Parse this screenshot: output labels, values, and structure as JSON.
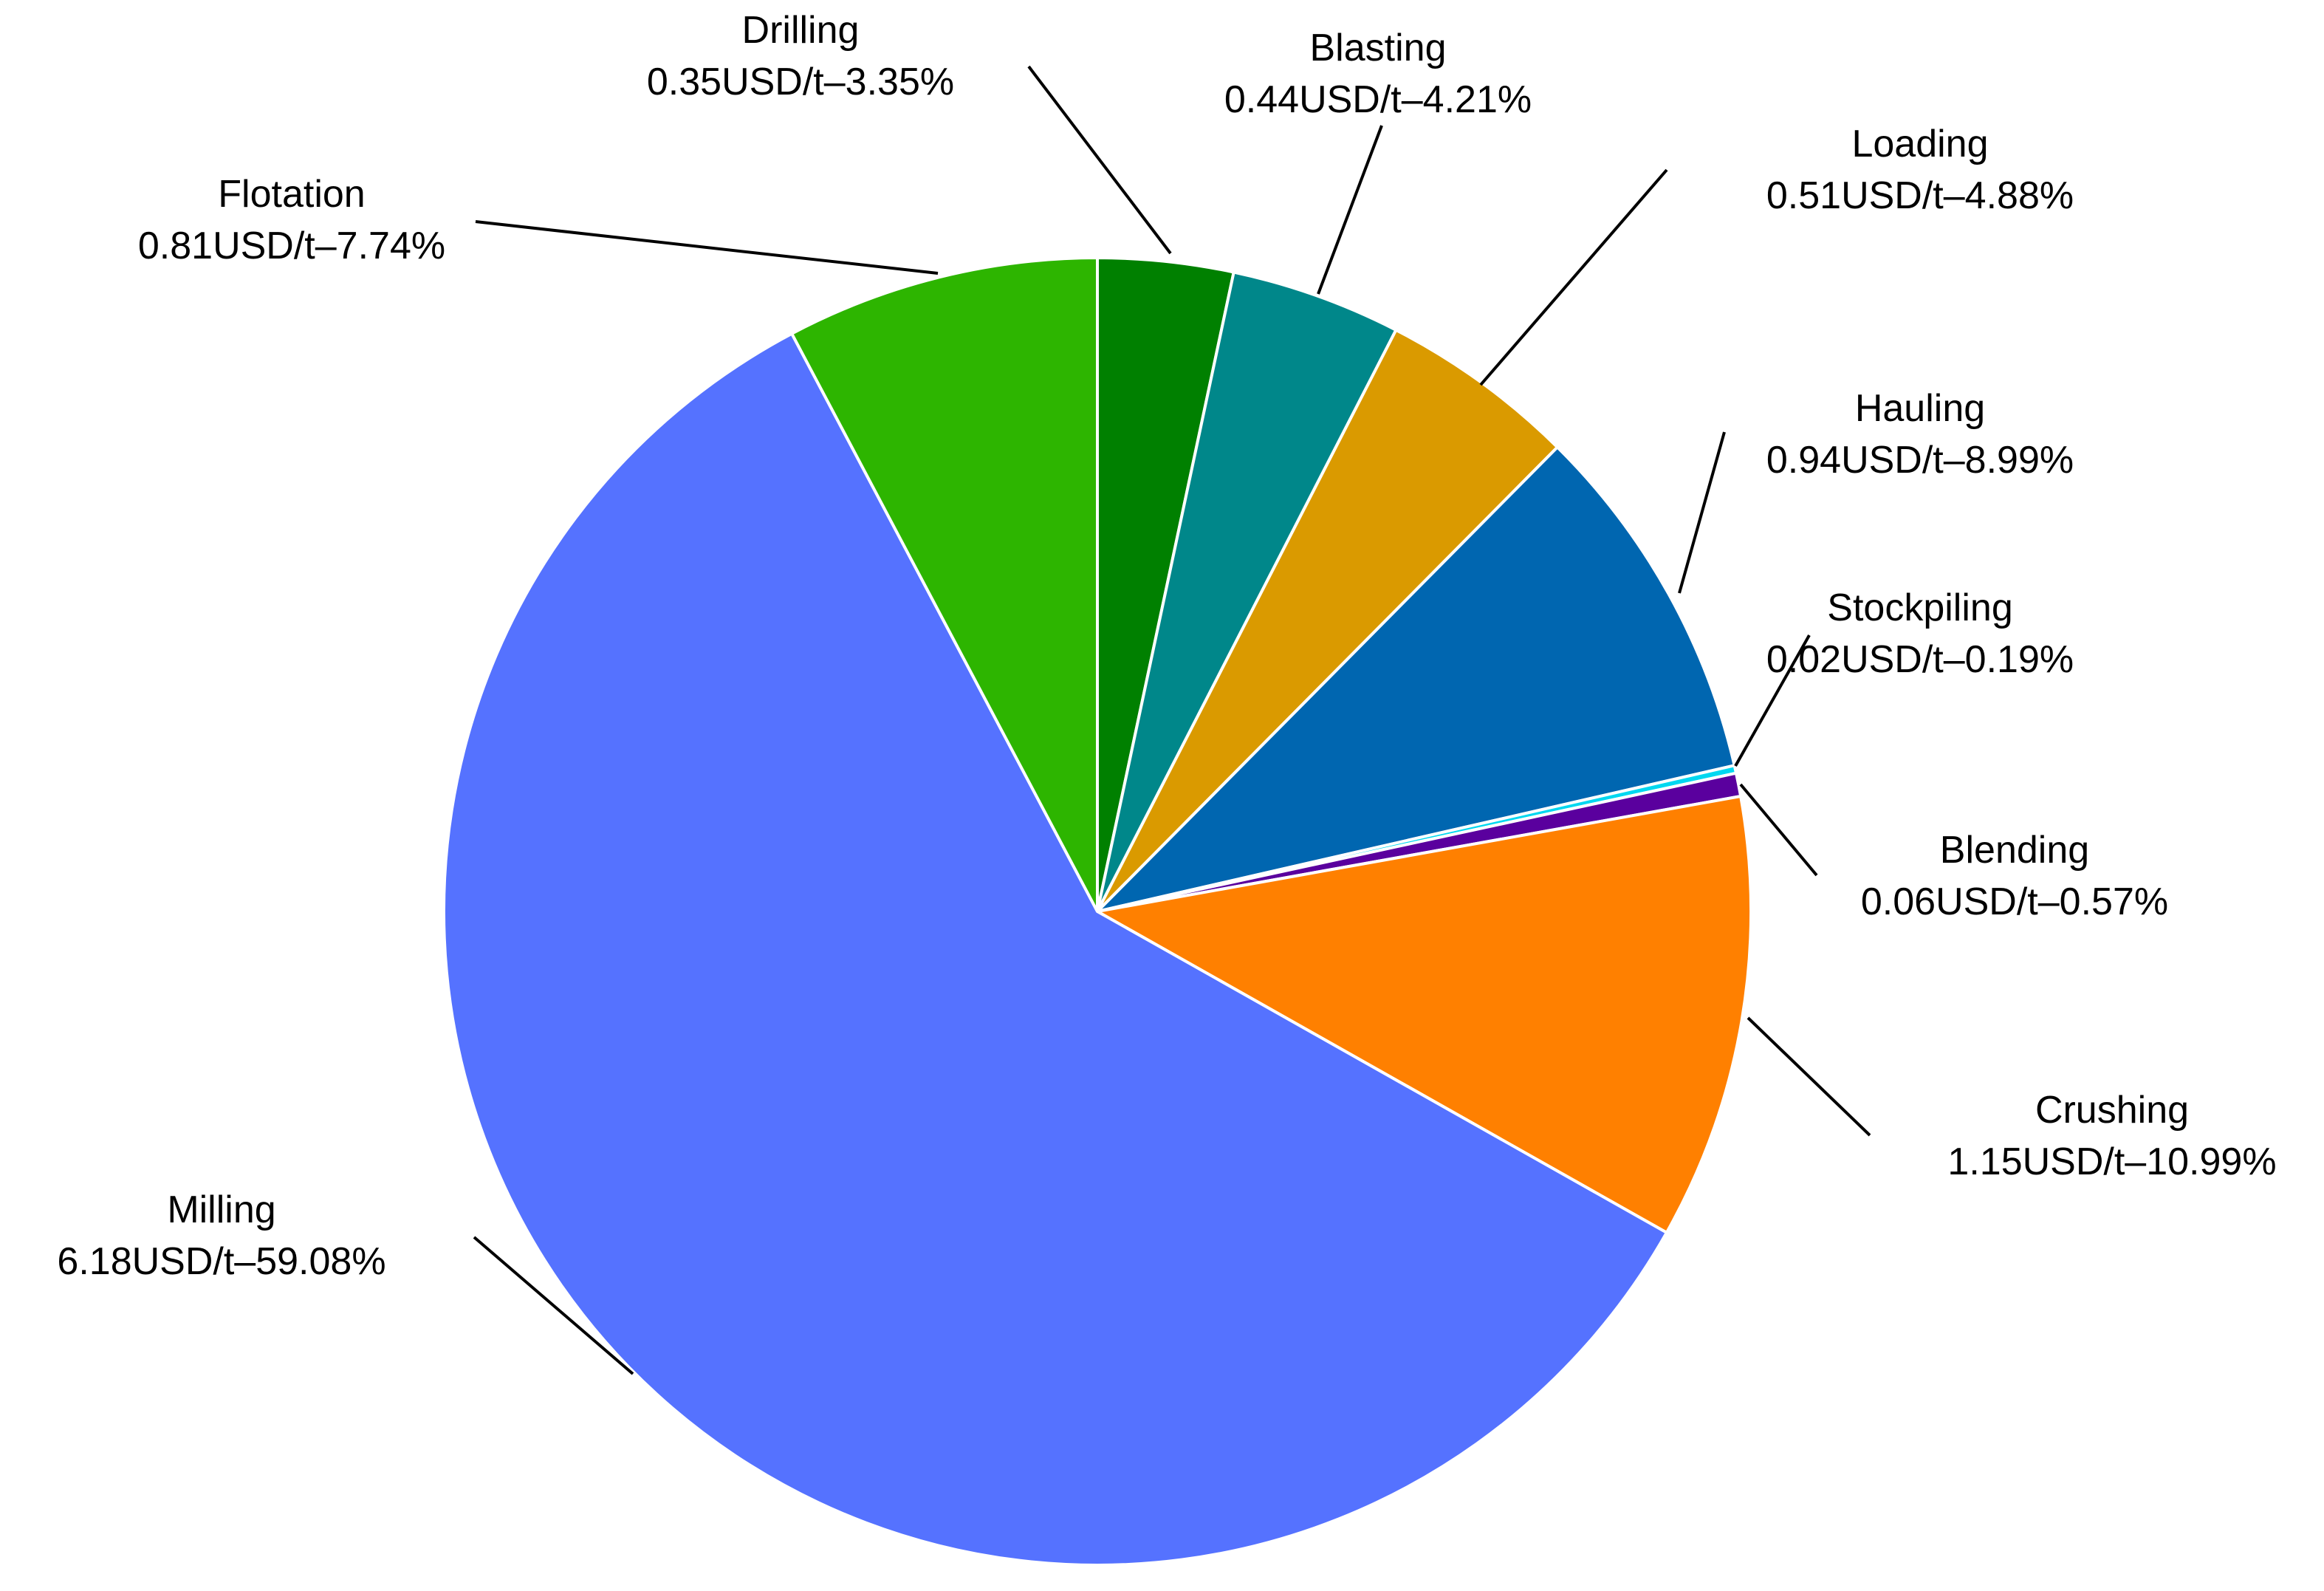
{
  "chart_data": {
    "type": "pie",
    "start_angle_deg": 0,
    "direction": "clockwise",
    "slices": [
      {
        "name": "Drilling",
        "value": 0.35,
        "percent": "3.35%",
        "label_line1": "Drilling",
        "label_line2": "0.35USD/t–3.35%",
        "color": "#008000"
      },
      {
        "name": "Blasting",
        "value": 0.44,
        "percent": "4.21%",
        "label_line1": "Blasting",
        "label_line2": "0.44USD/t–4.21%",
        "color": "#00878A"
      },
      {
        "name": "Loading",
        "value": 0.51,
        "percent": "4.88%",
        "label_line1": "Loading",
        "label_line2": "0.51USD/t–4.88%",
        "color": "#DA9A00"
      },
      {
        "name": "Hauling",
        "value": 0.94,
        "percent": "8.99%",
        "label_line1": "Hauling",
        "label_line2": "0.94USD/t–8.99%",
        "color": "#0066B0"
      },
      {
        "name": "Stockpiling",
        "value": 0.02,
        "percent": "0.19%",
        "label_line1": "Stockpiling",
        "label_line2": "0.02USD/t–0.19%",
        "color": "#00D8F0"
      },
      {
        "name": "Blending",
        "value": 0.06,
        "percent": "0.57%",
        "label_line1": "Blending",
        "label_line2": "0.06USD/t–0.57%",
        "color": "#5A009E"
      },
      {
        "name": "Crushing",
        "value": 1.15,
        "percent": "10.99%",
        "label_line1": "Crushing",
        "label_line2": "1.15USD/t–10.99%",
        "color": "#FF8000"
      },
      {
        "name": "Milling",
        "value": 6.18,
        "percent": "59.08%",
        "label_line1": "Milling",
        "label_line2": "6.18USD/t–59.08%",
        "color": "#5572FF"
      },
      {
        "name": "Flotation",
        "value": 0.81,
        "percent": "7.74%",
        "label_line1": "Flotation",
        "label_line2": "0.81USD/t–7.74%",
        "color": "#2DB500"
      }
    ]
  }
}
